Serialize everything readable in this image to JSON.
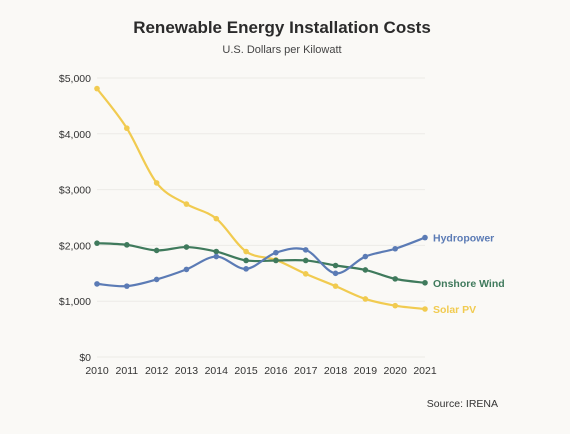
{
  "chart_data": {
    "type": "line",
    "title": "Renewable Energy Installation Costs",
    "subtitle": "U.S. Dollars per Kilowatt",
    "source": "Source: IRENA",
    "x": [
      2010,
      2011,
      2012,
      2013,
      2014,
      2015,
      2016,
      2017,
      2018,
      2019,
      2020,
      2021
    ],
    "x_tick_labels": [
      "2010",
      "2011",
      "2012",
      "2013",
      "2014",
      "2015",
      "2016",
      "2017",
      "2018",
      "2019",
      "2020",
      "2021"
    ],
    "ylim": [
      0,
      5000
    ],
    "y_ticks": [
      0,
      1000,
      2000,
      3000,
      4000,
      5000
    ],
    "y_tick_labels": [
      "$0",
      "$1,000",
      "$2,000",
      "$3,000",
      "$4,000",
      "$5,000"
    ],
    "grid": true,
    "legend": "direct labels at line ends",
    "series": [
      {
        "name": "Hydropower",
        "color": "#5b7bb5",
        "values": [
          1310,
          1270,
          1390,
          1570,
          1800,
          1580,
          1870,
          1920,
          1500,
          1800,
          1940,
          2140
        ]
      },
      {
        "name": "Onshore Wind",
        "color": "#3f7a5c",
        "values": [
          2040,
          2010,
          1910,
          1970,
          1890,
          1730,
          1730,
          1730,
          1640,
          1560,
          1400,
          1330
        ]
      },
      {
        "name": "Solar PV",
        "color": "#f1cb50",
        "values": [
          4810,
          4100,
          3120,
          2740,
          2480,
          1890,
          1740,
          1490,
          1270,
          1040,
          920,
          860
        ]
      }
    ]
  }
}
